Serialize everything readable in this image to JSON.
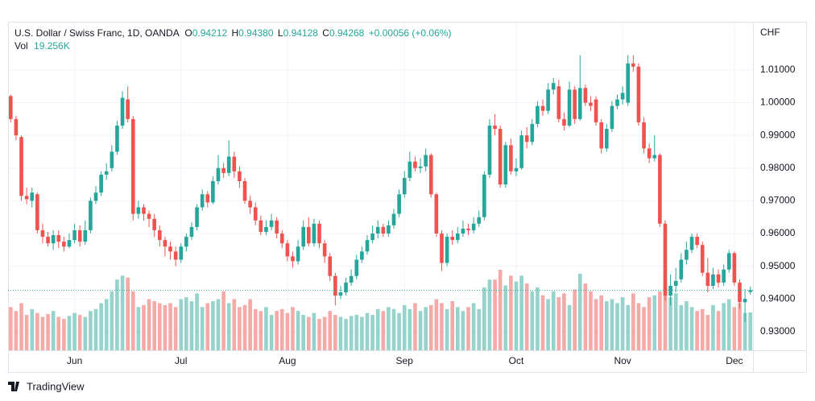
{
  "chart_data": {
    "type": "candlestick",
    "symbol": "U.S. Dollar / Swiss Franc, 1D, OANDA",
    "ohlc_labels": [
      {
        "key": "O",
        "text": "0.94212"
      },
      {
        "key": "H",
        "text": "0.94380"
      },
      {
        "key": "L",
        "text": "0.94128"
      },
      {
        "key": "C",
        "text": "0.94268"
      }
    ],
    "change": "+0.00056 (+0.06%)",
    "volume_key": "Vol",
    "volume_text": "19.256K",
    "y_axis_label": "CHF",
    "brand": "TradingView",
    "up_color": "#26a69a",
    "down_color": "#ef5350",
    "volume_up_color": "#95d3cc",
    "volume_down_color": "#f5aaa7",
    "grid": true,
    "ylim": [
      0.9243,
      1.0245
    ],
    "yticks": [
      {
        "value": 0.93,
        "label": "0.93000"
      },
      {
        "value": 0.94,
        "label": "0.94000"
      },
      {
        "value": 0.95,
        "label": "0.95000"
      },
      {
        "value": 0.96,
        "label": "0.96000"
      },
      {
        "value": 0.97,
        "label": "0.97000"
      },
      {
        "value": 0.98,
        "label": "0.98000"
      },
      {
        "value": 0.99,
        "label": "0.99000"
      },
      {
        "value": 1.0,
        "label": "1.00000"
      },
      {
        "value": 1.01,
        "label": "1.01000"
      }
    ],
    "xticks": [
      {
        "value": 12,
        "label": "Jun"
      },
      {
        "value": 32,
        "label": "Jul"
      },
      {
        "value": 52,
        "label": "Aug"
      },
      {
        "value": 74,
        "label": "Sep"
      },
      {
        "value": 95,
        "label": "Oct"
      },
      {
        "value": 115,
        "label": "Nov"
      },
      {
        "value": 136,
        "label": "Dec"
      }
    ],
    "open": [
      1.002,
      0.995,
      0.9895,
      0.9715,
      0.97,
      0.972,
      0.961,
      0.959,
      0.957,
      0.9595,
      0.9575,
      0.956,
      0.958,
      0.961,
      0.9575,
      0.961,
      0.97,
      0.9725,
      0.978,
      0.98,
      0.985,
      0.993,
      1.001,
      0.995,
      0.966,
      0.968,
      0.966,
      0.9645,
      0.961,
      0.958,
      0.956,
      0.9545,
      0.952,
      0.956,
      0.959,
      0.962,
      0.968,
      0.972,
      0.9695,
      0.976,
      0.98,
      0.9785,
      0.9835,
      0.979,
      0.976,
      0.97,
      0.968,
      0.964,
      0.9605,
      0.962,
      0.964,
      0.96,
      0.957,
      0.953,
      0.9515,
      0.956,
      0.962,
      0.957,
      0.963,
      0.957,
      0.953,
      0.947,
      0.941,
      0.942,
      0.945,
      0.947,
      0.952,
      0.9545,
      0.958,
      0.96,
      0.962,
      0.96,
      0.9625,
      0.966,
      0.972,
      0.977,
      0.982,
      0.98,
      0.9805,
      0.984,
      0.972,
      0.96,
      0.951,
      0.959,
      0.958,
      0.96,
      0.9615,
      0.961,
      0.963,
      0.965,
      0.978,
      0.993,
      0.992,
      0.975,
      0.987,
      0.979,
      0.98,
      0.99,
      0.988,
      0.9935,
      0.999,
      0.9975,
      1.004,
      1.005,
      0.995,
      0.993,
      1.004,
      0.995,
      1.0045,
      1.0,
      1.001,
      0.994,
      0.986,
      0.992,
      0.999,
      1.001,
      1.0,
      1.012,
      1.011,
      0.994,
      0.986,
      0.983,
      0.984,
      0.963,
      0.941,
      0.944,
      0.946,
      0.952,
      0.955,
      0.959,
      0.9565,
      0.948,
      0.944,
      0.9475,
      0.945,
      0.949,
      0.954,
      0.945,
      0.939,
      0.94212
    ],
    "high": [
      1.0025,
      0.996,
      0.99,
      0.974,
      0.974,
      0.9725,
      0.963,
      0.9605,
      0.961,
      0.961,
      0.959,
      0.96,
      0.963,
      0.9625,
      0.964,
      0.971,
      0.9745,
      0.979,
      0.9815,
      0.987,
      0.9945,
      1.0035,
      1.005,
      0.996,
      0.97,
      0.969,
      0.967,
      0.966,
      0.9625,
      0.959,
      0.9575,
      0.956,
      0.957,
      0.96,
      0.9635,
      0.969,
      0.9735,
      0.973,
      0.9775,
      0.984,
      0.9815,
      0.9885,
      0.985,
      0.9805,
      0.977,
      0.9715,
      0.9695,
      0.9655,
      0.964,
      0.966,
      0.965,
      0.961,
      0.958,
      0.9545,
      0.958,
      0.964,
      0.965,
      0.9645,
      0.964,
      0.958,
      0.954,
      0.948,
      0.944,
      0.9465,
      0.949,
      0.9535,
      0.956,
      0.9595,
      0.9625,
      0.964,
      0.963,
      0.964,
      0.9675,
      0.9735,
      0.979,
      0.985,
      0.9835,
      0.983,
      0.986,
      0.9845,
      0.9725,
      0.961,
      0.96,
      0.961,
      0.962,
      0.964,
      0.963,
      0.965,
      0.967,
      0.979,
      0.995,
      0.9965,
      0.993,
      0.988,
      0.989,
      0.983,
      0.9915,
      0.9925,
      0.995,
      1.0005,
      1.001,
      1.006,
      1.0075,
      1.007,
      0.997,
      1.0065,
      1.005,
      1.0145,
      1.0055,
      1.002,
      1.002,
      0.995,
      0.9935,
      1.0005,
      1.0025,
      1.005,
      1.0145,
      1.0145,
      1.012,
      0.9955,
      0.9875,
      0.99,
      0.9845,
      0.964,
      0.9475,
      0.9495,
      0.954,
      0.9575,
      0.96,
      0.96,
      0.9575,
      0.9525,
      0.9495,
      0.949,
      0.9505,
      0.955,
      0.9545,
      0.946,
      0.943,
      0.9438
    ],
    "low": [
      0.994,
      0.9885,
      0.97,
      0.969,
      0.968,
      0.96,
      0.957,
      0.956,
      0.955,
      0.9555,
      0.9545,
      0.9555,
      0.957,
      0.956,
      0.9565,
      0.96,
      0.969,
      0.9715,
      0.9765,
      0.979,
      0.984,
      0.992,
      0.994,
      0.964,
      0.9645,
      0.964,
      0.962,
      0.959,
      0.956,
      0.953,
      0.952,
      0.95,
      0.951,
      0.9545,
      0.958,
      0.961,
      0.967,
      0.968,
      0.969,
      0.975,
      0.977,
      0.9775,
      0.977,
      0.974,
      0.969,
      0.966,
      0.9625,
      0.9595,
      0.9595,
      0.961,
      0.9585,
      0.9555,
      0.9515,
      0.9495,
      0.9505,
      0.955,
      0.956,
      0.956,
      0.9555,
      0.951,
      0.9455,
      0.938,
      0.94,
      0.941,
      0.944,
      0.946,
      0.951,
      0.9535,
      0.957,
      0.9585,
      0.959,
      0.959,
      0.9615,
      0.965,
      0.971,
      0.976,
      0.979,
      0.9785,
      0.979,
      0.971,
      0.959,
      0.9485,
      0.95,
      0.9565,
      0.957,
      0.959,
      0.9595,
      0.96,
      0.962,
      0.964,
      0.977,
      0.99,
      0.974,
      0.974,
      0.978,
      0.9775,
      0.9795,
      0.986,
      0.987,
      0.9925,
      0.996,
      0.9965,
      1.0025,
      0.994,
      0.9915,
      0.9925,
      0.9935,
      0.9945,
      0.999,
      0.9975,
      0.993,
      0.9845,
      0.985,
      0.991,
      0.998,
      0.9995,
      0.999,
      1.0095,
      0.993,
      0.9845,
      0.9815,
      0.982,
      0.962,
      0.9395,
      0.938,
      0.942,
      0.945,
      0.9505,
      0.954,
      0.9555,
      0.947,
      0.942,
      0.943,
      0.9435,
      0.944,
      0.948,
      0.944,
      0.937,
      0.933,
      0.94128
    ],
    "close": [
      0.995,
      0.99,
      0.9715,
      0.9705,
      0.9725,
      0.961,
      0.959,
      0.957,
      0.9595,
      0.9575,
      0.956,
      0.958,
      0.961,
      0.9575,
      0.961,
      0.97,
      0.9725,
      0.978,
      0.979,
      0.985,
      0.993,
      1.0015,
      0.995,
      0.966,
      0.968,
      0.966,
      0.9645,
      0.961,
      0.958,
      0.956,
      0.9545,
      0.952,
      0.956,
      0.959,
      0.962,
      0.968,
      0.972,
      0.9695,
      0.976,
      0.98,
      0.9785,
      0.9835,
      0.979,
      0.976,
      0.97,
      0.968,
      0.964,
      0.9605,
      0.962,
      0.964,
      0.96,
      0.957,
      0.953,
      0.9515,
      0.956,
      0.962,
      0.957,
      0.963,
      0.957,
      0.953,
      0.947,
      0.941,
      0.942,
      0.945,
      0.947,
      0.952,
      0.9545,
      0.958,
      0.96,
      0.962,
      0.96,
      0.9625,
      0.966,
      0.972,
      0.977,
      0.982,
      0.98,
      0.9805,
      0.984,
      0.972,
      0.96,
      0.951,
      0.959,
      0.958,
      0.96,
      0.9615,
      0.961,
      0.963,
      0.965,
      0.978,
      0.993,
      0.992,
      0.975,
      0.987,
      0.979,
      0.98,
      0.99,
      0.988,
      0.9935,
      0.999,
      0.9975,
      1.004,
      1.006,
      0.995,
      0.993,
      1.004,
      0.995,
      1.0045,
      1.0,
      0.999,
      0.994,
      0.986,
      0.992,
      0.999,
      1.001,
      1.003,
      1.012,
      1.011,
      0.994,
      0.986,
      0.983,
      0.984,
      0.963,
      0.941,
      0.944,
      0.9455,
      0.952,
      0.955,
      0.959,
      0.9565,
      0.948,
      0.944,
      0.9475,
      0.945,
      0.949,
      0.954,
      0.945,
      0.939,
      0.94,
      0.94268
    ],
    "volume": [
      22000,
      20000,
      24000,
      18000,
      21000,
      19000,
      17000,
      18500,
      20000,
      17000,
      16000,
      17500,
      19000,
      18000,
      17000,
      20000,
      21000,
      24000,
      26000,
      30000,
      36000,
      38000,
      37000,
      30000,
      22000,
      23000,
      26000,
      25000,
      24000,
      23000,
      24000,
      22000,
      26000,
      27000,
      25000,
      29000,
      22000,
      24000,
      25000,
      26000,
      30000,
      24000,
      26000,
      22000,
      23000,
      26000,
      21000,
      20000,
      22000,
      18000,
      20000,
      21000,
      19000,
      22000,
      20000,
      18000,
      17000,
      19000,
      16000,
      17000,
      20000,
      18000,
      17000,
      16000,
      17500,
      18000,
      17000,
      19000,
      18000,
      21000,
      20000,
      22000,
      21000,
      19000,
      23000,
      21000,
      24000,
      20000,
      22000,
      23000,
      26000,
      24000,
      21000,
      25000,
      22000,
      20000,
      22000,
      24000,
      21000,
      32000,
      36000,
      36000,
      41000,
      33000,
      38000,
      35000,
      38000,
      34000,
      30000,
      32000,
      28000,
      26000,
      30000,
      27000,
      29000,
      23000,
      31000,
      39000,
      34000,
      30000,
      26000,
      28000,
      25000,
      26000,
      24000,
      27000,
      23000,
      29000,
      24000,
      22000,
      27000,
      28000,
      30000,
      33000,
      27000,
      29000,
      23000,
      25000,
      22000,
      20000,
      21000,
      18000,
      23000,
      20000,
      24000,
      26000,
      22000,
      24000,
      19000,
      19256
    ]
  }
}
